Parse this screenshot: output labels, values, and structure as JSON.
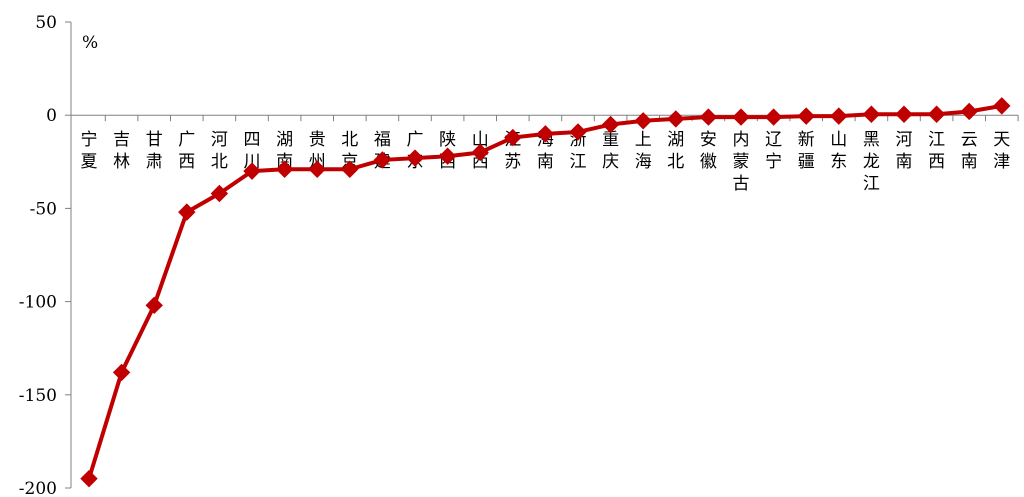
{
  "chart_data": {
    "type": "line",
    "unit": "%",
    "ylim": [
      -200,
      50
    ],
    "yticks": [
      50,
      0,
      -50,
      -100,
      -150,
      -200
    ],
    "y_tick_labels": [
      "50",
      "0",
      "-50",
      "-100",
      "-150",
      "-200"
    ],
    "grid": false,
    "legend": "none",
    "categories": [
      "宁夏",
      "吉林",
      "甘肃",
      "广西",
      "河北",
      "四川",
      "湖南",
      "贵州",
      "北京",
      "福建",
      "广东",
      "陕西",
      "山西",
      "江苏",
      "海南",
      "浙江",
      "重庆",
      "上海",
      "湖北",
      "安徽",
      "内蒙古",
      "辽宁",
      "新疆",
      "山东",
      "黑龙江",
      "河南",
      "江西",
      "云南",
      "天津"
    ],
    "values": [
      -195,
      -138,
      -102,
      -52,
      -42,
      -30,
      -29,
      -29,
      -29,
      -24,
      -23,
      -22,
      -20,
      -12,
      -10,
      -9,
      -5,
      -3,
      -2,
      -1,
      -1,
      -1,
      -0.5,
      -0.5,
      0.5,
      0.5,
      0.5,
      2,
      5
    ],
    "colors": {
      "series": "#C00000",
      "axis": "#808080"
    }
  }
}
